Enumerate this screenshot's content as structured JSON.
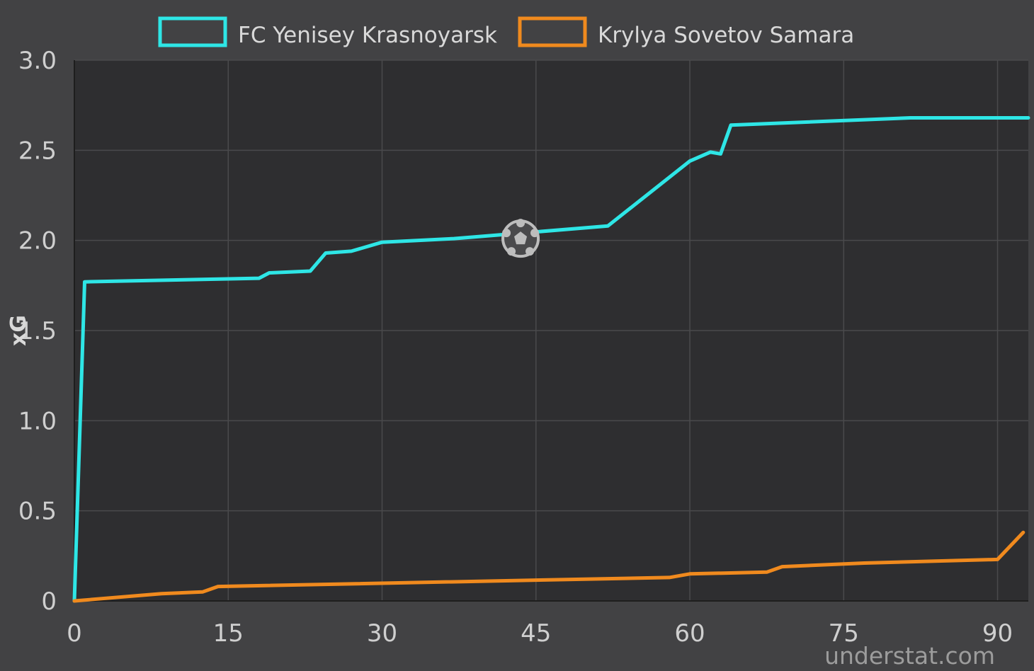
{
  "chart_data": {
    "type": "line",
    "interpolation": "step",
    "xlabel": "",
    "ylabel": "xG",
    "xlim": [
      0,
      93
    ],
    "ylim": [
      0,
      3.0
    ],
    "xticks": [
      0,
      15,
      30,
      45,
      60,
      75,
      90
    ],
    "yticks": [
      0,
      0.5,
      1.0,
      1.5,
      2.0,
      2.5,
      3.0
    ],
    "ytick_labels": [
      "0",
      "0.5",
      "1.0",
      "1.5",
      "2.0",
      "2.5",
      "3.0"
    ],
    "grid": true,
    "legend_position": "top",
    "series": [
      {
        "name": "FC Yenisey Krasnoyarsk",
        "color": "#2ee6e6",
        "points": [
          [
            0,
            0
          ],
          [
            1,
            1.77
          ],
          [
            18,
            1.79
          ],
          [
            19,
            1.82
          ],
          [
            23,
            1.83
          ],
          [
            24.5,
            1.93
          ],
          [
            27,
            1.94
          ],
          [
            30,
            1.99
          ],
          [
            37,
            2.01
          ],
          [
            52,
            2.08
          ],
          [
            60,
            2.44
          ],
          [
            62,
            2.49
          ],
          [
            63,
            2.48
          ],
          [
            64,
            2.64
          ],
          [
            81.5,
            2.68
          ],
          [
            93,
            2.68
          ]
        ]
      },
      {
        "name": "Krylya Sovetov Samara",
        "color": "#f08a1e",
        "points": [
          [
            0,
            0
          ],
          [
            8.5,
            0.04
          ],
          [
            12.5,
            0.05
          ],
          [
            14,
            0.08
          ],
          [
            58,
            0.13
          ],
          [
            60,
            0.15
          ],
          [
            67.5,
            0.16
          ],
          [
            69,
            0.19
          ],
          [
            77,
            0.21
          ],
          [
            90,
            0.23
          ],
          [
            92.5,
            0.38
          ]
        ]
      }
    ],
    "annotations": [
      {
        "type": "goal-marker",
        "icon": "soccer-ball-icon",
        "x": 43.5,
        "y": 2.01
      }
    ]
  },
  "watermark": "understat.com"
}
